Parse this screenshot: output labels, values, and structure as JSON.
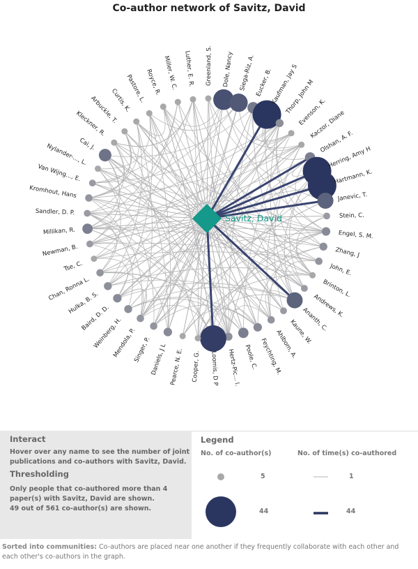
{
  "title": "Co-author network of Savitz, David",
  "center": {
    "name": "Savitz, David",
    "color": "#14998a"
  },
  "colors": {
    "node": "#a8a8aa",
    "node_dark": "#2b3660",
    "link": "#b3b3b5",
    "link_dark": "#3a4470"
  },
  "authors": [
    {
      "name": "Dole, Nancy",
      "size": 30
    },
    {
      "name": "Siega-Riz,  A.",
      "size": 26
    },
    {
      "name": "Eucker,  B.",
      "size": 14
    },
    {
      "name": "Kaufman, Jay S",
      "size": 44
    },
    {
      "name": "Thorp, John M",
      "size": 8
    },
    {
      "name": "Evenson,  K.",
      "size": 5
    },
    {
      "name": "Kaczor, Diane",
      "size": 5
    },
    {
      "name": "Olshan,  A. F.",
      "size": 12
    },
    {
      "name": "Herring, Amy H",
      "size": 44
    },
    {
      "name": "Hartmann,  K.",
      "size": 44
    },
    {
      "name": "Janevic,  T.",
      "size": 22
    },
    {
      "name": "Stein,  C.",
      "size": 6
    },
    {
      "name": "Engel,  S. M.",
      "size": 9
    },
    {
      "name": "Zhang,  J",
      "size": 8
    },
    {
      "name": "John,  E.",
      "size": 7
    },
    {
      "name": "Brinton,  L.",
      "size": 5
    },
    {
      "name": "Andrews,  K.",
      "size": 6
    },
    {
      "name": "Ananth,  C.",
      "size": 22
    },
    {
      "name": "Kaune,  W.",
      "size": 6
    },
    {
      "name": "Ahlbom,  A.",
      "size": 7
    },
    {
      "name": "Feychting,  M.",
      "size": 9
    },
    {
      "name": "Poole,  C.",
      "size": 12
    },
    {
      "name": "Hertz-Pic... I.",
      "size": 8
    },
    {
      "name": "Loomis, D P",
      "size": 40
    },
    {
      "name": "Cooper,  G.",
      "size": 5
    },
    {
      "name": "Pearce, N. E.",
      "size": 5
    },
    {
      "name": "Daniels, J L",
      "size": 9
    },
    {
      "name": "Singer,  P.",
      "size": 7
    },
    {
      "name": "Mendola,  P.",
      "size": 7
    },
    {
      "name": "Weinberg,  H.",
      "size": 8
    },
    {
      "name": "Baird,  D. D.",
      "size": 9
    },
    {
      "name": "Hulka, B. S.",
      "size": 8
    },
    {
      "name": "Chan, Ronna L.",
      "size": 7
    },
    {
      "name": "Tse,  C.",
      "size": 5
    },
    {
      "name": "Newman, B.",
      "size": 6
    },
    {
      "name": "Millikan,  R.",
      "size": 12
    },
    {
      "name": "Sandler, D. P.",
      "size": 6
    },
    {
      "name": "Kromhout, Hans",
      "size": 7
    },
    {
      "name": "Van Wijng...,  E.",
      "size": 6
    },
    {
      "name": "Nylander-...,  L.",
      "size": 5
    },
    {
      "name": "Cai,  J.",
      "size": 16
    },
    {
      "name": "Kleckner,  R.",
      "size": 5
    },
    {
      "name": "Arbuckle,  T.",
      "size": 5
    },
    {
      "name": "Curtis,  K.",
      "size": 5
    },
    {
      "name": "Pastore,  L.",
      "size": 5
    },
    {
      "name": "Royce,  R.",
      "size": 5
    },
    {
      "name": "Miller, W. C.",
      "size": 5
    },
    {
      "name": "Luther, E. R.",
      "size": 5
    },
    {
      "name": "Greenland,  S.",
      "size": 5
    }
  ],
  "strong_links": [
    "Kaufman, Jay S",
    "Herring, Amy H",
    "Hartmann,  K.",
    "Olshan,  A. F.",
    "Janevic,  T.",
    "Loomis, D P",
    "Ananth,  C."
  ],
  "interact": {
    "heading": "Interact",
    "text_1": "Hover over any name to see the number of joint",
    "text_2": "publications and co-authors with Savitz, David."
  },
  "thresholding": {
    "heading": "Thresholding",
    "text_1": "Only people that co-authored more than 4",
    "text_2": "paper(s) with Savitz, David are shown.",
    "text_3": "49 out of 561 co-author(s) are shown."
  },
  "legend": {
    "heading": "Legend",
    "coauthors_label": "No. of co-author(s)",
    "times_label": "No. of time(s) co-authored",
    "min_coauthors": "5",
    "max_coauthors": "44",
    "min_times": "1",
    "max_times": "44"
  },
  "footer": {
    "bold": "Sorted into communities:",
    "text": "Co-authors are placed near one another if they frequently collaborate with each other and each other's co-authors in the graph."
  }
}
